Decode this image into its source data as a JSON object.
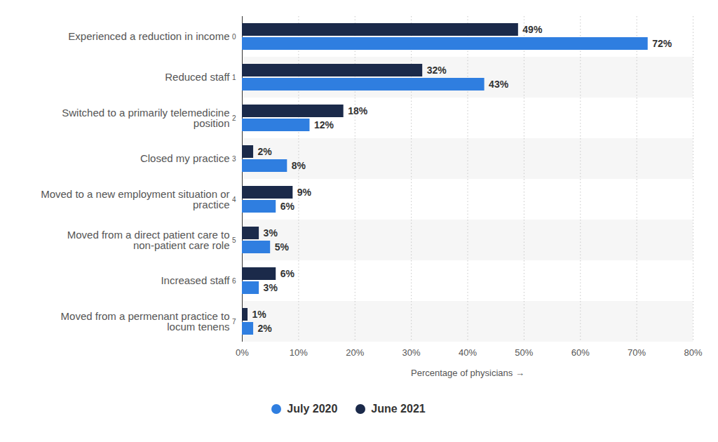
{
  "chart_data": {
    "type": "bar",
    "orientation": "horizontal",
    "categories": [
      "Experienced a reduction in income",
      "Reduced staff",
      "Switched to a primarily telemedicine position",
      "Closed my practice",
      "Moved to a new employment situation or practice",
      "Moved from a direct patient care to non-patient care role",
      "Increased staff",
      "Moved from a permenant practice to locum tenens"
    ],
    "series": [
      {
        "name": "July 2020",
        "color": "#2f7ee0",
        "values": [
          72,
          43,
          12,
          8,
          6,
          5,
          3,
          2
        ],
        "value_labels": [
          "72%",
          "43%",
          "12%",
          "8%",
          "6%",
          "5%",
          "3%",
          "2%"
        ]
      },
      {
        "name": "June 2021",
        "color": "#1b2a4a",
        "values": [
          49,
          32,
          18,
          2,
          9,
          3,
          6,
          1
        ],
        "value_labels": [
          "49%",
          "32%",
          "18%",
          "2%",
          "9%",
          "3%",
          "6%",
          "1%"
        ]
      }
    ],
    "x_label": "Percentage of physicians",
    "xlim": [
      0,
      80
    ],
    "xticks": [
      {
        "value": 0,
        "label": "0%"
      },
      {
        "value": 10,
        "label": "10%"
      },
      {
        "value": 20,
        "label": "20%"
      },
      {
        "value": 30,
        "label": "30%"
      },
      {
        "value": 40,
        "label": "40%"
      },
      {
        "value": 50,
        "label": "50%"
      },
      {
        "value": 60,
        "label": "60%"
      },
      {
        "value": 70,
        "label": "70%"
      },
      {
        "value": 80,
        "label": "80%"
      }
    ],
    "grid": true,
    "data_labels": true,
    "legend": "bottom"
  }
}
